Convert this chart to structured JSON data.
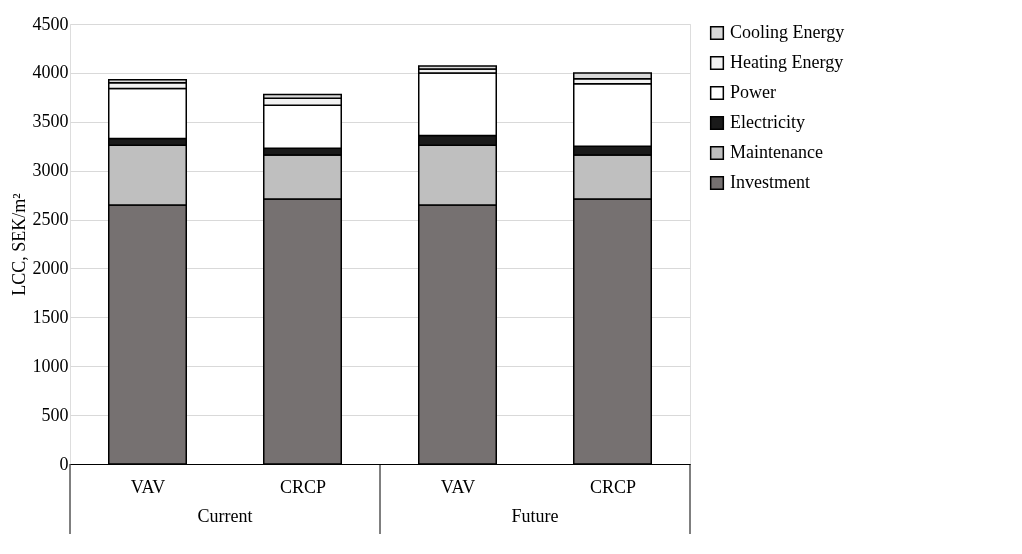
{
  "chart_data": {
    "type": "bar",
    "stacked": true,
    "ylabel": "LCC, SEK/m²",
    "categories": [
      "VAV",
      "CRCP",
      "VAV",
      "CRCP"
    ],
    "series": [
      {
        "name": "Investment",
        "color": "#767171",
        "values": [
          2650,
          2710,
          2650,
          2710
        ]
      },
      {
        "name": "Maintenance",
        "color": "#bfbfbf",
        "values": [
          610,
          450,
          610,
          450
        ]
      },
      {
        "name": "Electricity",
        "color": "#1a1a1a",
        "values": [
          70,
          70,
          100,
          90
        ]
      },
      {
        "name": "Power",
        "color": "#ffffff",
        "values": [
          510,
          440,
          640,
          640
        ]
      },
      {
        "name": "Heating Energy",
        "color": "#f2f2f2",
        "values": [
          60,
          70,
          40,
          50
        ]
      },
      {
        "name": "Cooling Energy",
        "color": "#d9d9d9",
        "values": [
          30,
          40,
          30,
          60
        ]
      }
    ],
    "ylim": [
      0,
      4500
    ],
    "yticks": [
      0,
      500,
      1000,
      1500,
      2000,
      2500,
      3000,
      3500,
      4000,
      4500
    ],
    "grid": "y",
    "legend": "right",
    "annotations": [
      "Current",
      "Future"
    ]
  }
}
